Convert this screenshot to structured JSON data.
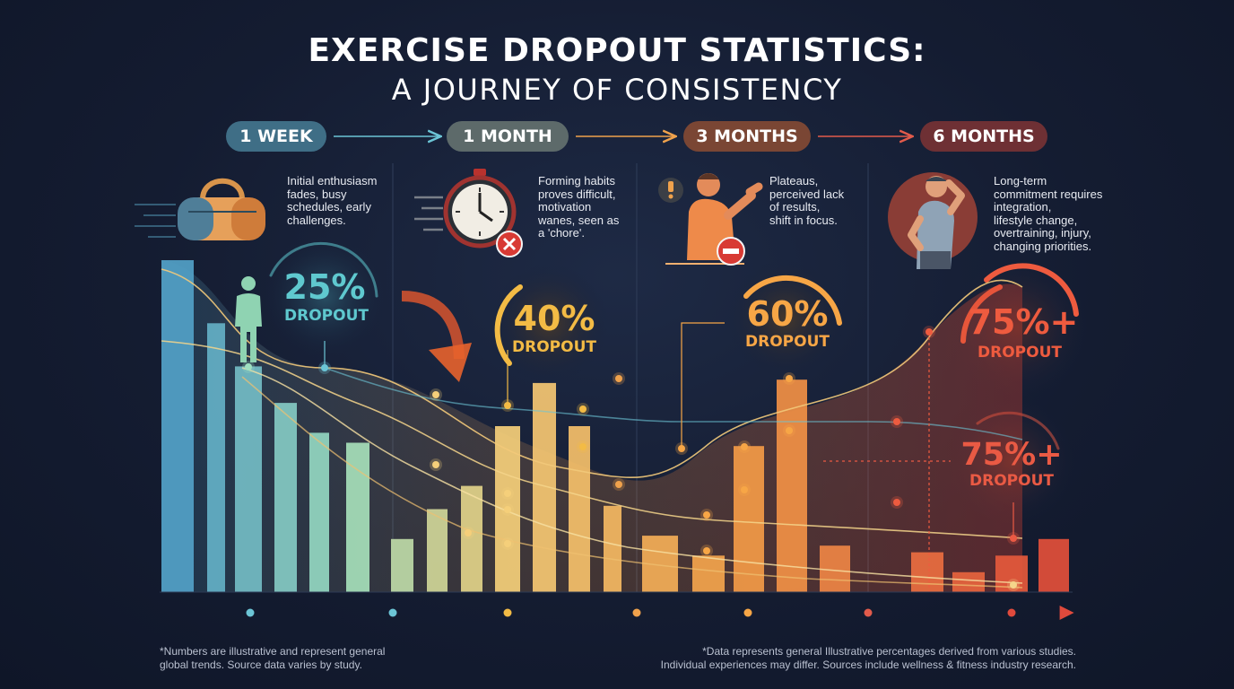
{
  "title": {
    "line1": "EXERCISE DROPOUT STATISTICS:",
    "line2": "A JOURNEY OF CONSISTENCY"
  },
  "stages": [
    {
      "label": "1 WEEK",
      "color": "#3f6e86",
      "description": [
        "Initial enthusiasm",
        "fades, busy",
        "schedules, early",
        "challenges."
      ],
      "icon": "gym-bag-icon"
    },
    {
      "label": "1 MONTH",
      "color": "#5d6a6a",
      "description": [
        "Forming habits",
        "proves difficult,",
        "motivation",
        "wanes, seen as",
        "a 'chore'."
      ],
      "icon": "stopwatch-icon"
    },
    {
      "label": "3 MONTHS",
      "color": "#7a4634",
      "description": [
        "Plateaus,",
        "perceived lack",
        "of results,",
        "shift in focus."
      ],
      "icon": "person-stop-icon"
    },
    {
      "label": "6 MONTHS",
      "color": "#6e3034",
      "description": [
        "Long-term",
        "commitment requires",
        "integration,",
        "lifestyle change,",
        "overtraining, injury,",
        "changing priorities."
      ],
      "icon": "tired-person-icon"
    }
  ],
  "chart_data": {
    "type": "bar",
    "title": "EXERCISE DROPOUT STATISTICS: A JOURNEY OF CONSISTENCY",
    "categories": [
      "1 WEEK",
      "1 MONTH",
      "3 MONTHS",
      "6 MONTHS"
    ],
    "dropout_labels": [
      {
        "stage": "1 WEEK",
        "value": "25%",
        "label": "DROPOUT",
        "color": "#5fc9cf"
      },
      {
        "stage": "1 MONTH",
        "value": "40%",
        "label": "DROPOUT",
        "color": "#f3bb45"
      },
      {
        "stage": "3 MONTHS",
        "value": "60%",
        "label": "DROPOUT",
        "color": "#f7a646"
      },
      {
        "stage": "6 MONTHS",
        "value": "75%+",
        "label": "DROPOUT",
        "color": "#ee5b3f"
      },
      {
        "stage": "6 MONTHS",
        "value": "75%+",
        "label": "DROPOUT",
        "color": "#ea5a44"
      }
    ],
    "values": [
      25,
      40,
      60,
      75
    ],
    "decorative_bars": [
      100,
      81,
      68,
      57,
      48,
      45,
      16,
      25,
      32,
      50,
      63,
      50,
      26,
      17,
      11,
      44,
      64,
      14,
      12,
      6,
      11,
      16,
      5
    ],
    "xlabel": "",
    "ylabel": "",
    "grid": false
  },
  "footnotes": {
    "left": [
      "*Numbers are illustrative and represent general",
      "global trends. Source data varies by study."
    ],
    "right": [
      "*Data represents general Illustrative percentages derived from various studies.",
      "Individual experiences may differ. Sources include wellness & fitness industry research."
    ]
  }
}
